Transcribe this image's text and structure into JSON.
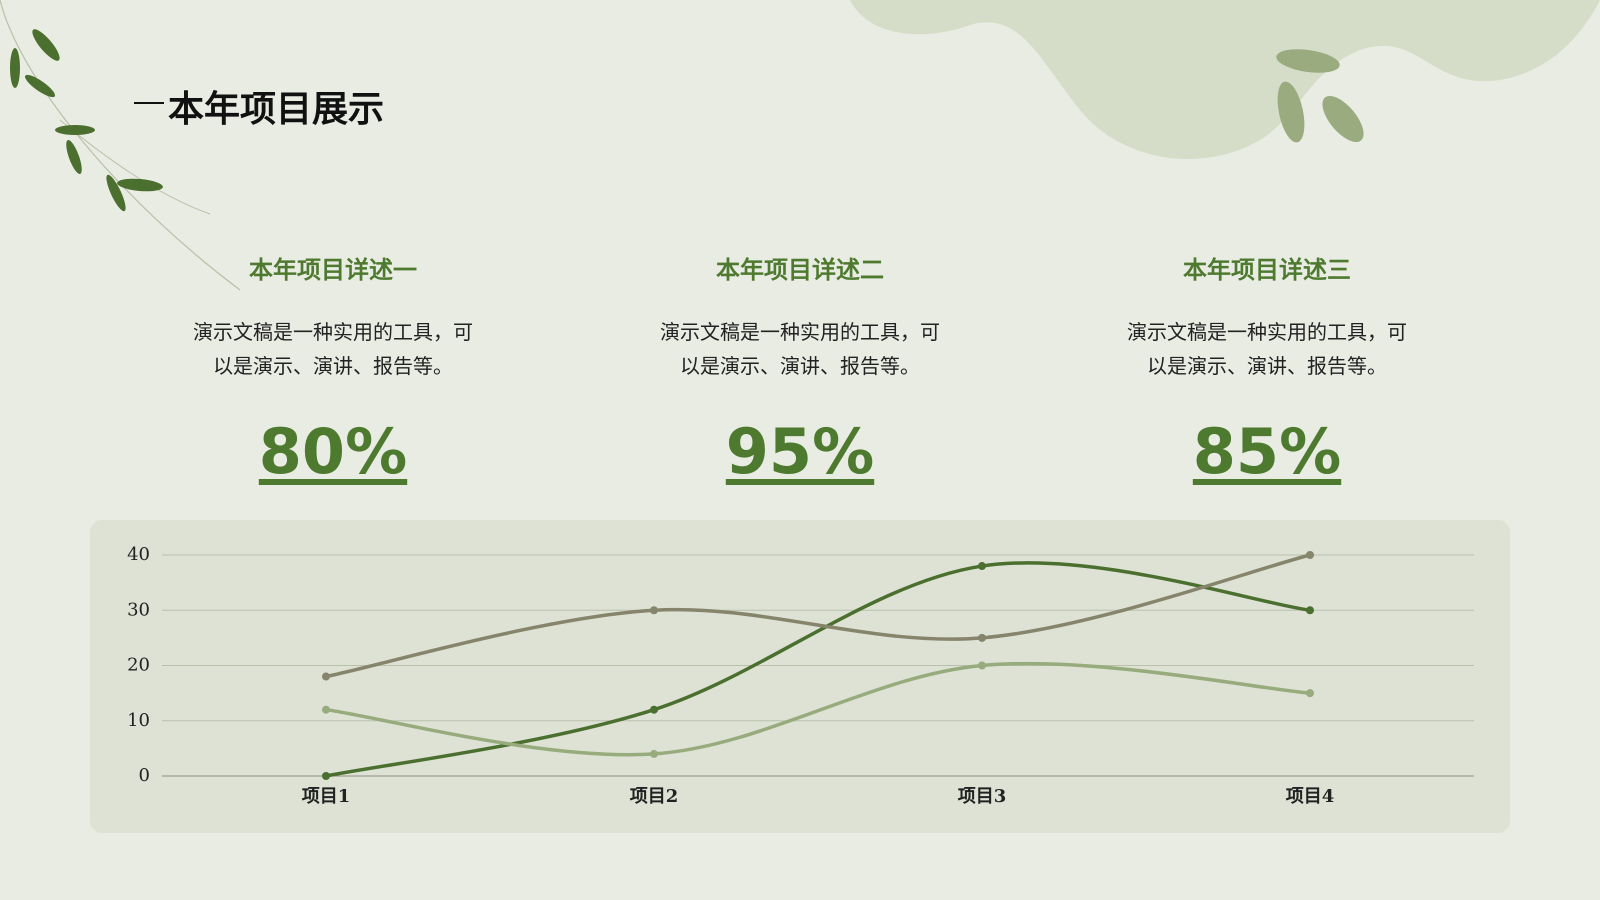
{
  "header": {
    "title": "本年项目展示"
  },
  "cards": [
    {
      "title": "本年项目详述一",
      "lines": [
        "演示文稿是一种实用的工具，可",
        "以是演示、演讲、报告等。"
      ],
      "percent": "80%"
    },
    {
      "title": "本年项目详述二",
      "lines": [
        "演示文稿是一种实用的工具，可",
        "以是演示、演讲、报告等。"
      ],
      "percent": "95%"
    },
    {
      "title": "本年项目详述三",
      "lines": [
        "演示文稿是一种实用的工具，可",
        "以是演示、演讲、报告等。"
      ],
      "percent": "85%"
    }
  ],
  "chart_data": {
    "type": "line",
    "smooth": true,
    "grid": true,
    "categories": [
      "项目1",
      "项目2",
      "项目3",
      "项目4"
    ],
    "series": [
      {
        "color": "#4b6f2e",
        "values": [
          0,
          12,
          38,
          30
        ]
      },
      {
        "color": "#86846b",
        "values": [
          18,
          30,
          25,
          40
        ]
      },
      {
        "color": "#98ab7c",
        "values": [
          12,
          4,
          20,
          15
        ]
      }
    ],
    "ylim": [
      0,
      40
    ],
    "yticks": [
      0,
      10,
      20,
      30,
      40
    ]
  }
}
